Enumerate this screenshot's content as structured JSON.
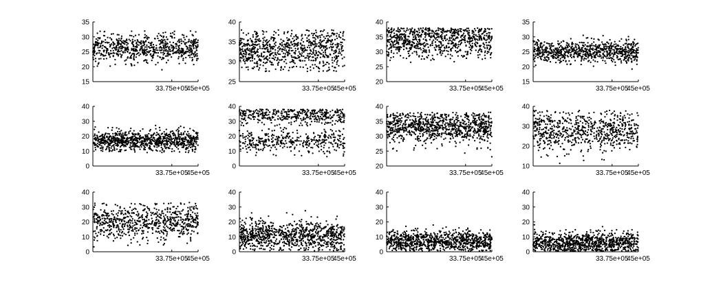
{
  "figure": {
    "layout": "3 rows x 4 columns scatter grid",
    "marker_color": "#000000",
    "axis_color": "#000000"
  },
  "chart_data": [
    {
      "type": "scatter",
      "row": 1,
      "col": 1,
      "xlim": [
        0,
        4500000
      ],
      "ylim": [
        15,
        35
      ],
      "xticks": [
        "33.75e+05",
        "45e+05"
      ],
      "yticks": [
        "15",
        "20",
        "25",
        "30",
        "35"
      ],
      "gen": {
        "n": 700,
        "mean": 26.5,
        "sd": 2.5,
        "min": 18,
        "max": 32,
        "seed": 11
      }
    },
    {
      "type": "scatter",
      "row": 1,
      "col": 2,
      "xlim": [
        0,
        4500000
      ],
      "ylim": [
        25,
        40
      ],
      "xticks": [
        "33.75e+05",
        "45e+05"
      ],
      "yticks": [
        "25",
        "30",
        "35",
        "40"
      ],
      "gen": {
        "n": 800,
        "mean": 33,
        "sd": 2.6,
        "min": 27.5,
        "max": 38,
        "seed": 23
      }
    },
    {
      "type": "scatter",
      "row": 1,
      "col": 3,
      "xlim": [
        0,
        4500000
      ],
      "ylim": [
        20,
        40
      ],
      "xticks": [
        "33.75e+05",
        "45e+05"
      ],
      "yticks": [
        "20",
        "25",
        "30",
        "35",
        "40"
      ],
      "gen": {
        "n": 800,
        "mean": 34,
        "sd": 3,
        "min": 23,
        "max": 38,
        "seed": 37
      }
    },
    {
      "type": "scatter",
      "row": 1,
      "col": 4,
      "xlim": [
        0,
        4500000
      ],
      "ylim": [
        15,
        35
      ],
      "xticks": [
        "33.75e+05",
        "45e+05"
      ],
      "yticks": [
        "15",
        "20",
        "25",
        "30",
        "35"
      ],
      "gen": {
        "n": 800,
        "mean": 25,
        "sd": 1.8,
        "min": 18,
        "max": 31,
        "seed": 41
      }
    },
    {
      "type": "scatter",
      "row": 2,
      "col": 1,
      "xlim": [
        0,
        4500000
      ],
      "ylim": [
        0,
        40
      ],
      "xticks": [
        "33.75e+05",
        "45e+05"
      ],
      "yticks": [
        "0",
        "10",
        "20",
        "30",
        "40"
      ],
      "gen": {
        "n": 900,
        "mean": 17,
        "sd": 3.5,
        "min": 9,
        "max": 38,
        "seed": 53
      }
    },
    {
      "type": "scatter",
      "row": 2,
      "col": 2,
      "xlim": [
        0,
        4500000
      ],
      "ylim": [
        0,
        40
      ],
      "xticks": [
        "33.75e+05",
        "45e+05"
      ],
      "yticks": [
        "0",
        "10",
        "20",
        "30",
        "40"
      ],
      "gen": {
        "n": 800,
        "mean": 17,
        "sd": 4,
        "min": 6,
        "max": 38,
        "mean2": 34,
        "sd2": 3,
        "split": 0.5,
        "seed": 61
      }
    },
    {
      "type": "scatter",
      "row": 2,
      "col": 3,
      "xlim": [
        0,
        4500000
      ],
      "ylim": [
        20,
        40
      ],
      "xticks": [
        "33.75e+05",
        "45e+05"
      ],
      "yticks": [
        "20",
        "25",
        "30",
        "35",
        "40"
      ],
      "gen": {
        "n": 900,
        "mean": 33,
        "sd": 2.8,
        "min": 20.5,
        "max": 38,
        "seed": 71
      }
    },
    {
      "type": "scatter",
      "row": 2,
      "col": 4,
      "xlim": [
        0,
        4500000
      ],
      "ylim": [
        10,
        40
      ],
      "xticks": [
        "33.75e+05",
        "45e+05"
      ],
      "yticks": [
        "10",
        "20",
        "30",
        "40"
      ],
      "gen": {
        "n": 700,
        "mean": 28,
        "sd": 5,
        "min": 11,
        "max": 38,
        "seed": 83
      }
    },
    {
      "type": "scatter",
      "row": 3,
      "col": 1,
      "xlim": [
        0,
        4500000
      ],
      "ylim": [
        0,
        40
      ],
      "xticks": [
        "33.75e+05",
        "45e+05"
      ],
      "yticks": [
        "0",
        "10",
        "20",
        "30",
        "40"
      ],
      "gen": {
        "n": 700,
        "mean": 20,
        "sd": 6,
        "min": 1,
        "max": 33,
        "seed": 97
      }
    },
    {
      "type": "scatter",
      "row": 3,
      "col": 2,
      "xlim": [
        0,
        4500000
      ],
      "ylim": [
        0,
        40
      ],
      "xticks": [
        "33.75e+05",
        "45e+05"
      ],
      "yticks": [
        "0",
        "10",
        "20",
        "30",
        "40"
      ],
      "gen": {
        "n": 900,
        "mean": 11,
        "sd": 5,
        "min": 0.5,
        "max": 32,
        "seed": 101
      }
    },
    {
      "type": "scatter",
      "row": 3,
      "col": 3,
      "xlim": [
        0,
        4500000
      ],
      "ylim": [
        0,
        40
      ],
      "xticks": [
        "33.75e+05",
        "45e+05"
      ],
      "yticks": [
        "0",
        "10",
        "20",
        "30",
        "40"
      ],
      "gen": {
        "n": 900,
        "mean": 7,
        "sd": 3.5,
        "min": 0.5,
        "max": 32,
        "seed": 113
      }
    },
    {
      "type": "scatter",
      "row": 3,
      "col": 4,
      "xlim": [
        0,
        4500000
      ],
      "ylim": [
        0,
        40
      ],
      "xticks": [
        "33.75e+05",
        "45e+05"
      ],
      "yticks": [
        "0",
        "10",
        "20",
        "30",
        "40"
      ],
      "gen": {
        "n": 900,
        "mean": 6,
        "sd": 3.5,
        "min": 0.5,
        "max": 35,
        "seed": 127
      }
    }
  ]
}
